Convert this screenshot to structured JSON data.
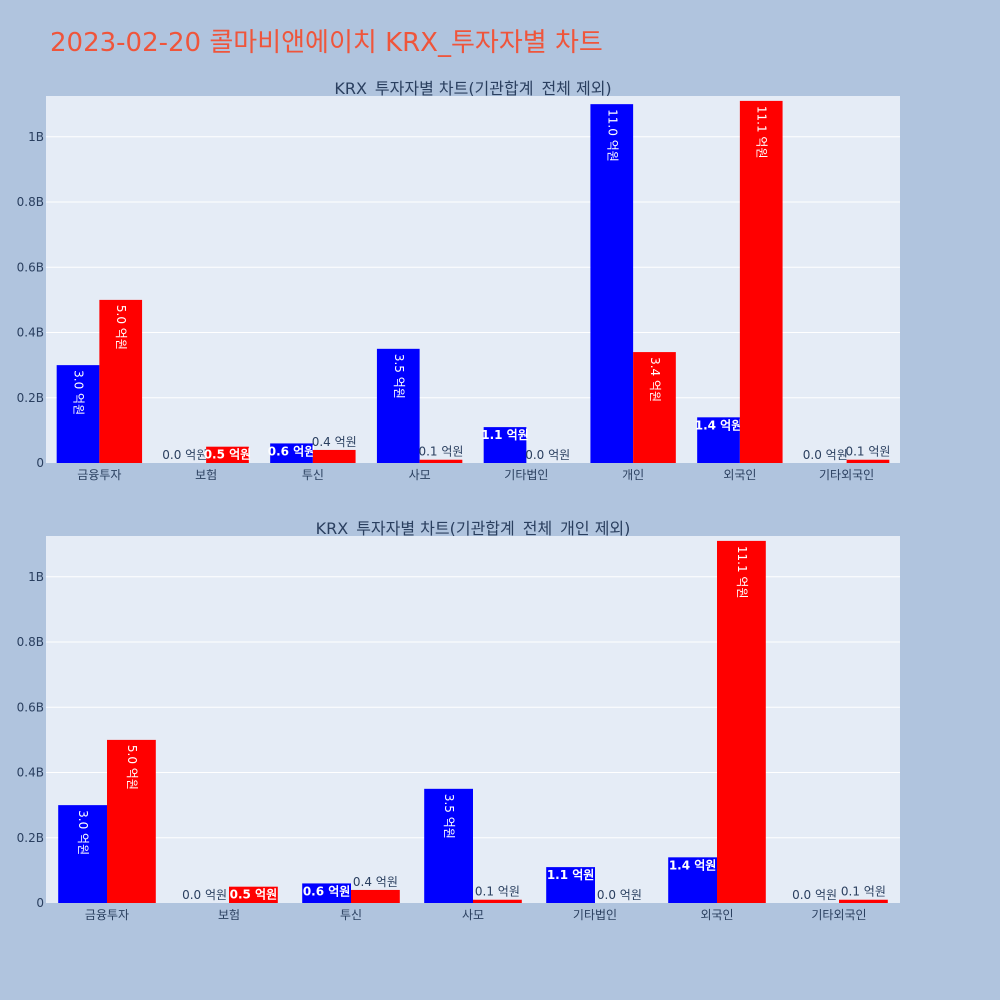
{
  "page_title": "2023-02-20 콜마비앤에이치 KRX_투자자별 차트",
  "colors": {
    "buy": "#0000ff",
    "sell": "#ff0000",
    "plot_bg": "#e5ecf6",
    "paper_bg": "#b0c4de",
    "title": "#ef553b",
    "text": "#2a3f5f"
  },
  "chart_data": [
    {
      "type": "bar",
      "title": "KRX_투자자별 차트(기관합계_전체 제외)",
      "categories": [
        "금융투자",
        "보험",
        "투신",
        "사모",
        "기타법인",
        "개인",
        "외국인",
        "기타외국인"
      ],
      "ylim": [
        0,
        1.1
      ],
      "yticks": [
        0,
        0.2,
        0.4,
        0.6,
        0.8,
        1.0
      ],
      "ytick_labels": [
        "0",
        "0.2B",
        "0.4B",
        "0.6B",
        "0.8B",
        "1B"
      ],
      "grid": true,
      "series": [
        {
          "color": "#0000ff",
          "values": [
            0.3,
            0.0,
            0.06,
            0.35,
            0.11,
            1.1,
            0.14,
            0.0
          ],
          "labels": [
            "3.0 억원",
            "0.0 억원",
            "0.6 억원",
            "3.5 억원",
            "1.1 억원",
            "11.0 억원",
            "1.4 억원",
            "0.0 억원"
          ]
        },
        {
          "color": "#ff0000",
          "values": [
            0.5,
            0.05,
            0.04,
            0.01,
            0.0,
            0.34,
            1.11,
            0.01
          ],
          "labels": [
            "5.0 억원",
            "0.5 억원",
            "0.4 억원",
            "0.1 억원",
            "0.0 억원",
            "3.4 억원",
            "11.1 억원",
            "0.1 억원"
          ]
        }
      ]
    },
    {
      "type": "bar",
      "title": "KRX_투자자별 차트(기관합계_전체_개인 제외)",
      "categories": [
        "금융투자",
        "보험",
        "투신",
        "사모",
        "기타법인",
        "외국인",
        "기타외국인"
      ],
      "ylim": [
        0,
        1.1
      ],
      "yticks": [
        0,
        0.2,
        0.4,
        0.6,
        0.8,
        1.0
      ],
      "ytick_labels": [
        "0",
        "0.2B",
        "0.4B",
        "0.6B",
        "0.8B",
        "1B"
      ],
      "grid": true,
      "series": [
        {
          "color": "#0000ff",
          "values": [
            0.3,
            0.0,
            0.06,
            0.35,
            0.11,
            0.14,
            0.0
          ],
          "labels": [
            "3.0 억원",
            "0.0 억원",
            "0.6 억원",
            "3.5 억원",
            "1.1 억원",
            "1.4 억원",
            "0.0 억원"
          ]
        },
        {
          "color": "#ff0000",
          "values": [
            0.5,
            0.05,
            0.04,
            0.01,
            0.0,
            1.11,
            0.01
          ],
          "labels": [
            "5.0 억원",
            "0.5 억원",
            "0.4 억원",
            "0.1 억원",
            "0.0 억원",
            "11.1 억원",
            "0.1 억원"
          ]
        }
      ]
    }
  ]
}
